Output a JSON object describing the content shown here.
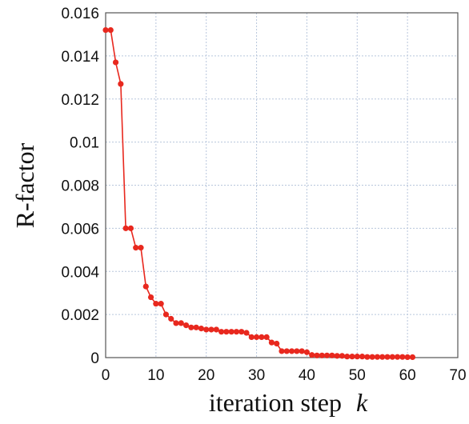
{
  "chart_data": {
    "type": "line",
    "xlabel": "iteration step",
    "xlabel_var": "k",
    "ylabel": "R-factor",
    "xlim": [
      0,
      70
    ],
    "ylim": [
      0,
      0.016
    ],
    "xticks": [
      "0",
      "10",
      "20",
      "30",
      "40",
      "50",
      "60",
      "70"
    ],
    "yticks": [
      "0",
      "0.002",
      "0.004",
      "0.006",
      "0.008",
      "0.01",
      "0.012",
      "0.014",
      "0.016"
    ],
    "grid": true,
    "line_color": "#e8281e",
    "series": [
      {
        "x": [
          0,
          1,
          2,
          3,
          4,
          5,
          6,
          7,
          8,
          9,
          10,
          11,
          12,
          13,
          14,
          15,
          16,
          17,
          18,
          19,
          20,
          21,
          22,
          23,
          24,
          25,
          26,
          27,
          28,
          29,
          30,
          31,
          32,
          33,
          34,
          35,
          36,
          37,
          38,
          39,
          40,
          41,
          42,
          43,
          44,
          45,
          46,
          47,
          48,
          49,
          50,
          51,
          52,
          53,
          54,
          55,
          56,
          57,
          58,
          59,
          60,
          61
        ],
        "values": [
          0.0152,
          0.0152,
          0.0137,
          0.0127,
          0.006,
          0.006,
          0.0051,
          0.0051,
          0.0033,
          0.0028,
          0.0025,
          0.0025,
          0.002,
          0.0018,
          0.0016,
          0.0016,
          0.0015,
          0.0014,
          0.0014,
          0.00135,
          0.0013,
          0.0013,
          0.0013,
          0.0012,
          0.0012,
          0.0012,
          0.0012,
          0.0012,
          0.00115,
          0.00095,
          0.00095,
          0.00095,
          0.00095,
          0.0007,
          0.00065,
          0.0003,
          0.0003,
          0.0003,
          0.0003,
          0.0003,
          0.00025,
          0.00012,
          0.0001,
          0.0001,
          0.0001,
          0.0001,
          8e-05,
          8e-05,
          5e-05,
          5e-05,
          5e-05,
          5e-05,
          3e-05,
          3e-05,
          3e-05,
          3e-05,
          3e-05,
          3e-05,
          3e-05,
          3e-05,
          2e-05,
          2e-05
        ]
      }
    ]
  }
}
